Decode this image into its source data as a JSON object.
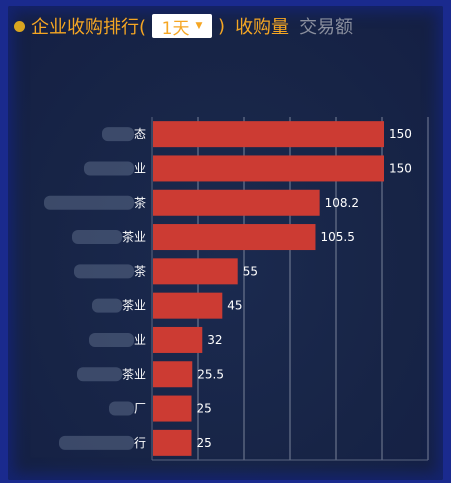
{
  "header": {
    "title": "企业收购排行(",
    "period_value": "1天",
    "close_paren": ")",
    "tabs": [
      {
        "label": "收购量",
        "active": true
      },
      {
        "label": "交易额",
        "active": false
      }
    ]
  },
  "colors": {
    "accent": "#f5a623",
    "bar": "#cc3b33",
    "inactive_tab": "#8a8f9e",
    "grid": "#c9cfdb"
  },
  "chart_data": {
    "type": "bar",
    "orientation": "horizontal",
    "categories": [
      "态",
      "业",
      "茶",
      "茶业",
      "茶",
      "茶业",
      "业",
      "茶业",
      "厂",
      "行"
    ],
    "values": [
      150,
      150,
      108.2,
      105.5,
      55,
      45,
      32,
      25.5,
      25,
      25
    ],
    "data_labels": [
      "150",
      "150",
      "108.2",
      "105.5",
      "55",
      "45",
      "32",
      "25.5",
      "25",
      "25"
    ],
    "xlim": [
      0,
      150
    ],
    "grid": true
  }
}
